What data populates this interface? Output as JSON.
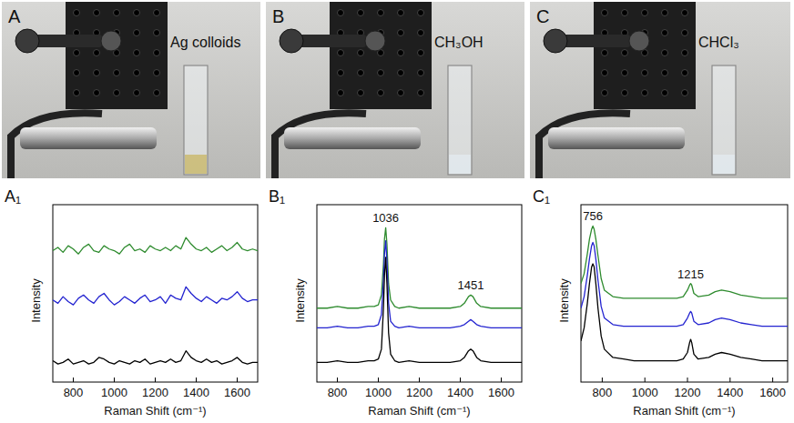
{
  "photos": [
    {
      "label": "A",
      "text": "Ag colloids"
    },
    {
      "label": "B",
      "text": "CH₃OH"
    },
    {
      "label": "C",
      "text": "CHCl₃"
    }
  ],
  "chart_data": [
    {
      "type": "line",
      "panel_label": "A₁",
      "x_label": "Raman Shift (cm⁻¹)",
      "y_label": "Intensity",
      "tick_labels": "x",
      "xlim": [
        700,
        1700
      ],
      "xticks": [
        800,
        1000,
        1200,
        1400,
        1600
      ],
      "ylim": [
        0,
        1.08
      ],
      "x": [
        700,
        725,
        750,
        775,
        800,
        825,
        850,
        875,
        900,
        925,
        950,
        975,
        1000,
        1025,
        1050,
        1075,
        1100,
        1125,
        1150,
        1175,
        1200,
        1225,
        1250,
        1275,
        1300,
        1325,
        1350,
        1375,
        1400,
        1425,
        1450,
        1475,
        1500,
        1525,
        1550,
        1575,
        1600,
        1625,
        1650,
        1675,
        1700
      ],
      "series": [
        {
          "color": "#2e8b2e",
          "values": [
            0.8,
            0.82,
            0.79,
            0.83,
            0.81,
            0.78,
            0.82,
            0.84,
            0.8,
            0.79,
            0.83,
            0.81,
            0.8,
            0.78,
            0.82,
            0.84,
            0.8,
            0.81,
            0.79,
            0.83,
            0.81,
            0.8,
            0.82,
            0.8,
            0.83,
            0.81,
            0.88,
            0.84,
            0.81,
            0.8,
            0.82,
            0.79,
            0.81,
            0.83,
            0.8,
            0.82,
            0.85,
            0.81,
            0.8,
            0.81,
            0.8
          ]
        },
        {
          "color": "#2323d0",
          "values": [
            0.5,
            0.48,
            0.52,
            0.49,
            0.47,
            0.51,
            0.53,
            0.5,
            0.48,
            0.52,
            0.54,
            0.5,
            0.47,
            0.49,
            0.52,
            0.5,
            0.48,
            0.51,
            0.53,
            0.49,
            0.5,
            0.52,
            0.48,
            0.53,
            0.51,
            0.5,
            0.58,
            0.54,
            0.51,
            0.49,
            0.52,
            0.5,
            0.48,
            0.51,
            0.5,
            0.52,
            0.55,
            0.51,
            0.49,
            0.5,
            0.5
          ]
        },
        {
          "color": "#000000",
          "values": [
            0.13,
            0.11,
            0.12,
            0.14,
            0.11,
            0.12,
            0.13,
            0.11,
            0.12,
            0.15,
            0.14,
            0.12,
            0.11,
            0.13,
            0.12,
            0.11,
            0.13,
            0.12,
            0.14,
            0.11,
            0.12,
            0.13,
            0.12,
            0.14,
            0.12,
            0.13,
            0.19,
            0.15,
            0.13,
            0.12,
            0.14,
            0.12,
            0.13,
            0.11,
            0.12,
            0.13,
            0.15,
            0.12,
            0.11,
            0.12,
            0.12
          ]
        }
      ],
      "annotations": []
    },
    {
      "type": "line",
      "panel_label": "B₁",
      "x_label": "Raman Shift (cm⁻¹)",
      "y_label": "Intensity",
      "tick_labels": "x",
      "xlim": [
        700,
        1700
      ],
      "xticks": [
        800,
        1000,
        1200,
        1400,
        1600
      ],
      "ylim": [
        0,
        1.08
      ],
      "x": [
        700,
        750,
        800,
        850,
        900,
        950,
        980,
        1000,
        1015,
        1025,
        1030,
        1036,
        1042,
        1050,
        1060,
        1080,
        1100,
        1150,
        1200,
        1250,
        1300,
        1350,
        1400,
        1420,
        1440,
        1451,
        1462,
        1480,
        1500,
        1550,
        1600,
        1650,
        1700
      ],
      "series": [
        {
          "color": "#2e8b2e",
          "values": [
            0.45,
            0.45,
            0.46,
            0.45,
            0.45,
            0.46,
            0.46,
            0.47,
            0.53,
            0.72,
            0.87,
            0.94,
            0.84,
            0.6,
            0.5,
            0.46,
            0.45,
            0.46,
            0.45,
            0.45,
            0.45,
            0.45,
            0.46,
            0.48,
            0.52,
            0.53,
            0.52,
            0.48,
            0.46,
            0.45,
            0.45,
            0.45,
            0.45
          ]
        },
        {
          "color": "#2323d0",
          "values": [
            0.33,
            0.33,
            0.34,
            0.33,
            0.33,
            0.34,
            0.34,
            0.35,
            0.41,
            0.62,
            0.78,
            0.86,
            0.74,
            0.48,
            0.37,
            0.34,
            0.33,
            0.34,
            0.33,
            0.33,
            0.33,
            0.33,
            0.34,
            0.35,
            0.37,
            0.38,
            0.37,
            0.35,
            0.34,
            0.33,
            0.33,
            0.33,
            0.33
          ]
        },
        {
          "color": "#000000",
          "values": [
            0.12,
            0.12,
            0.13,
            0.12,
            0.12,
            0.13,
            0.13,
            0.14,
            0.2,
            0.45,
            0.65,
            0.76,
            0.6,
            0.3,
            0.17,
            0.13,
            0.12,
            0.13,
            0.12,
            0.12,
            0.12,
            0.12,
            0.13,
            0.15,
            0.19,
            0.2,
            0.19,
            0.15,
            0.13,
            0.12,
            0.12,
            0.12,
            0.12
          ]
        }
      ],
      "annotations": [
        {
          "text": "1036",
          "x": 1036
        },
        {
          "text": "1451",
          "x": 1451
        }
      ]
    },
    {
      "type": "line",
      "panel_label": "C₁",
      "x_label": "Raman Shift (cm⁻¹)",
      "y_label": "Intensity",
      "tick_labels": "x",
      "xlim": [
        700,
        1670
      ],
      "xticks": [
        800,
        1000,
        1200,
        1400,
        1600
      ],
      "ylim": [
        0,
        1.08
      ],
      "x": [
        700,
        715,
        730,
        740,
        750,
        756,
        762,
        770,
        780,
        795,
        810,
        850,
        900,
        950,
        1000,
        1050,
        1100,
        1150,
        1180,
        1200,
        1210,
        1215,
        1220,
        1230,
        1250,
        1300,
        1330,
        1360,
        1400,
        1450,
        1500,
        1550,
        1600,
        1670
      ],
      "series": [
        {
          "color": "#2e8b2e",
          "values": [
            0.6,
            0.66,
            0.78,
            0.87,
            0.93,
            0.95,
            0.93,
            0.87,
            0.77,
            0.63,
            0.56,
            0.52,
            0.51,
            0.51,
            0.51,
            0.51,
            0.51,
            0.51,
            0.52,
            0.56,
            0.59,
            0.6,
            0.59,
            0.54,
            0.52,
            0.53,
            0.55,
            0.56,
            0.55,
            0.53,
            0.52,
            0.51,
            0.51,
            0.51
          ]
        },
        {
          "color": "#2323d0",
          "values": [
            0.45,
            0.52,
            0.65,
            0.75,
            0.83,
            0.85,
            0.83,
            0.75,
            0.62,
            0.46,
            0.39,
            0.35,
            0.34,
            0.34,
            0.34,
            0.34,
            0.34,
            0.34,
            0.35,
            0.39,
            0.42,
            0.43,
            0.42,
            0.37,
            0.35,
            0.36,
            0.38,
            0.39,
            0.38,
            0.36,
            0.35,
            0.34,
            0.34,
            0.34
          ]
        },
        {
          "color": "#000000",
          "values": [
            0.25,
            0.33,
            0.48,
            0.6,
            0.7,
            0.72,
            0.7,
            0.6,
            0.45,
            0.28,
            0.2,
            0.15,
            0.14,
            0.13,
            0.13,
            0.13,
            0.13,
            0.13,
            0.14,
            0.18,
            0.24,
            0.26,
            0.24,
            0.17,
            0.14,
            0.15,
            0.17,
            0.18,
            0.17,
            0.15,
            0.14,
            0.13,
            0.13,
            0.13
          ]
        }
      ],
      "annotations": [
        {
          "text": "756",
          "x": 756
        },
        {
          "text": "1215",
          "x": 1215
        }
      ]
    }
  ]
}
